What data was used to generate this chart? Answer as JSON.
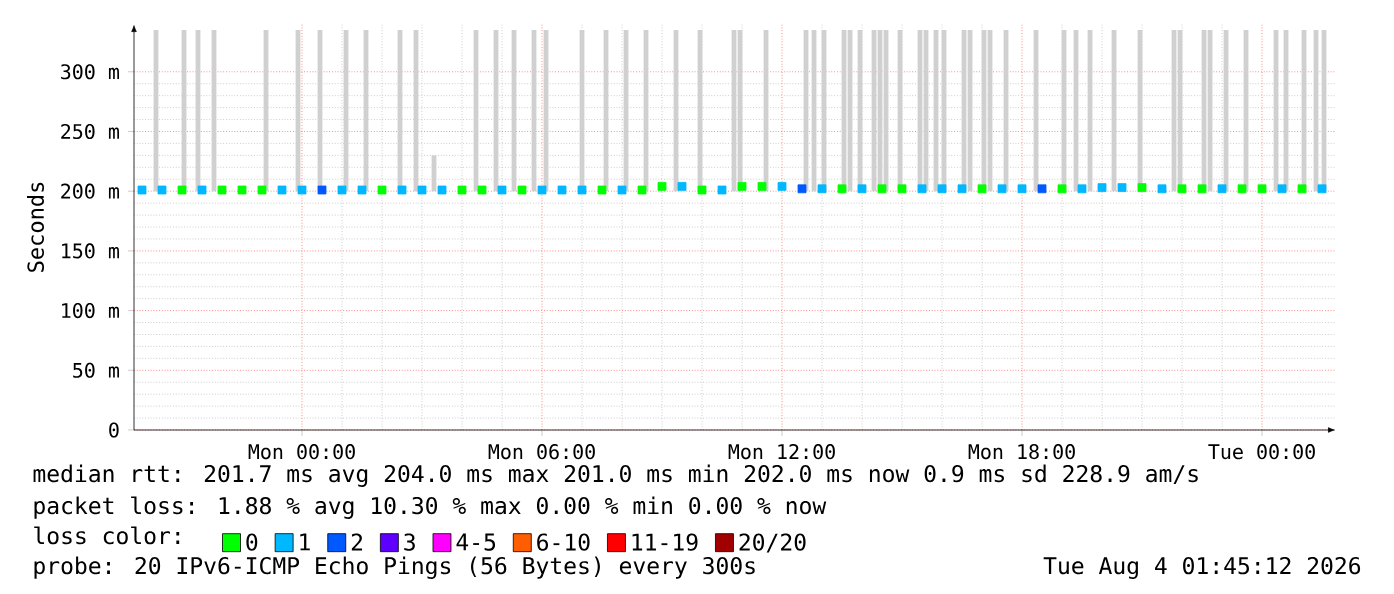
{
  "chart_data": {
    "type": "scatter",
    "ylabel": "Seconds",
    "legend_title": "loss color:",
    "legend": "bottom",
    "grid": true,
    "marker": "square",
    "xlim": [
      "2026-08-02T19:48",
      "2026-08-04T01:51"
    ],
    "ylim": [
      0,
      340
    ],
    "xticks": [
      {
        "value": "2026-08-03T00:00",
        "label": "Mon 00:00"
      },
      {
        "value": "2026-08-03T06:00",
        "label": "Mon 06:00"
      },
      {
        "value": "2026-08-03T12:00",
        "label": "Mon 12:00"
      },
      {
        "value": "2026-08-03T18:00",
        "label": "Mon 18:00"
      },
      {
        "value": "2026-08-04T00:00",
        "label": "Tue 00:00"
      }
    ],
    "yticks": [
      0,
      {
        "value": 50,
        "label": "50 m"
      },
      {
        "value": 100,
        "label": "100 m"
      },
      {
        "value": 150,
        "label": "150 m"
      },
      {
        "value": 200,
        "label": "200 m"
      },
      {
        "value": 250,
        "label": "250 m"
      },
      {
        "value": 300,
        "label": "300 m"
      }
    ],
    "series": [
      {
        "type": "bar",
        "color": "#d0d0d0",
        "x": [
          "2026-08-02T20:21",
          "2026-08-02T21:03",
          "2026-08-02T21:24",
          "2026-08-02T21:48",
          "2026-08-02T23:06",
          "2026-08-02T23:54",
          "2026-08-03T00:27",
          "2026-08-03T01:06",
          "2026-08-03T01:36",
          "2026-08-03T02:27",
          "2026-08-03T02:51",
          "2026-08-03T03:18",
          "2026-08-03T04:21",
          "2026-08-03T04:51",
          "2026-08-03T05:18",
          "2026-08-03T05:48",
          "2026-08-03T06:06",
          "2026-08-03T07:00",
          "2026-08-03T07:36",
          "2026-08-03T08:06",
          "2026-08-03T08:36",
          "2026-08-03T09:21",
          "2026-08-03T09:57",
          "2026-08-03T10:48",
          "2026-08-03T10:57",
          "2026-08-03T11:36",
          "2026-08-03T12:36",
          "2026-08-03T12:48",
          "2026-08-03T13:03",
          "2026-08-03T13:33",
          "2026-08-03T13:42",
          "2026-08-03T13:57",
          "2026-08-03T14:18",
          "2026-08-03T14:27",
          "2026-08-03T14:36",
          "2026-08-03T14:57",
          "2026-08-03T15:27",
          "2026-08-03T15:36",
          "2026-08-03T15:51",
          "2026-08-03T16:03",
          "2026-08-03T16:33",
          "2026-08-03T16:42",
          "2026-08-03T17:03",
          "2026-08-03T17:12",
          "2026-08-03T17:36",
          "2026-08-03T18:21",
          "2026-08-03T19:03",
          "2026-08-03T19:21",
          "2026-08-03T19:42",
          "2026-08-03T20:18",
          "2026-08-03T20:57",
          "2026-08-03T21:48",
          "2026-08-03T21:57",
          "2026-08-03T22:33",
          "2026-08-03T22:42",
          "2026-08-03T23:06",
          "2026-08-03T23:36",
          "2026-08-04T00:21",
          "2026-08-04T00:36",
          "2026-08-04T01:03",
          "2026-08-04T01:21",
          "2026-08-04T01:33"
        ],
        "base": [
          200,
          200,
          200,
          200,
          200,
          200,
          200,
          200,
          200,
          200,
          200,
          200,
          200,
          200,
          200,
          200,
          200,
          200,
          200,
          200,
          200,
          200,
          200,
          200,
          200,
          200,
          200,
          200,
          200,
          200,
          200,
          200,
          200,
          200,
          200,
          200,
          200,
          200,
          200,
          200,
          200,
          200,
          200,
          200,
          200,
          200,
          200,
          200,
          200,
          200,
          200,
          200,
          200,
          200,
          200,
          200,
          200,
          200,
          200,
          200,
          200,
          200
        ],
        "values": [
          135,
          135,
          135,
          135,
          135,
          135,
          135,
          135,
          135,
          135,
          135,
          30,
          135,
          135,
          135,
          135,
          135,
          135,
          135,
          135,
          135,
          135,
          135,
          135,
          135,
          135,
          135,
          135,
          135,
          135,
          135,
          135,
          135,
          135,
          135,
          135,
          135,
          135,
          135,
          135,
          135,
          135,
          135,
          135,
          135,
          135,
          135,
          135,
          135,
          135,
          135,
          135,
          135,
          135,
          135,
          135,
          135,
          135,
          135,
          135,
          135,
          135
        ]
      },
      {
        "name": "0",
        "color": "#00ff00",
        "x": [
          "2026-08-02T21:00",
          "2026-08-02T22:00",
          "2026-08-02T22:30",
          "2026-08-02T23:00",
          "2026-08-03T02:00",
          "2026-08-03T04:00",
          "2026-08-03T04:30",
          "2026-08-03T05:30",
          "2026-08-03T07:30",
          "2026-08-03T08:30",
          "2026-08-03T09:00",
          "2026-08-03T10:00",
          "2026-08-03T11:00",
          "2026-08-03T11:30",
          "2026-08-03T13:30",
          "2026-08-03T14:30",
          "2026-08-03T15:00",
          "2026-08-03T17:00",
          "2026-08-03T19:00",
          "2026-08-03T21:00",
          "2026-08-03T22:00",
          "2026-08-03T22:30",
          "2026-08-03T23:30",
          "2026-08-04T00:00",
          "2026-08-04T01:00"
        ],
        "values": [
          201,
          201,
          201,
          201,
          201,
          201,
          201,
          201,
          201,
          201,
          204,
          201,
          204,
          204,
          202,
          202,
          202,
          202,
          202,
          203,
          202,
          202,
          202,
          202,
          202
        ]
      },
      {
        "name": "1",
        "color": "#00b8ff",
        "x": [
          "2026-08-02T20:00",
          "2026-08-02T20:30",
          "2026-08-02T21:30",
          "2026-08-02T23:30",
          "2026-08-03T00:00",
          "2026-08-03T01:00",
          "2026-08-03T01:30",
          "2026-08-03T02:30",
          "2026-08-03T03:00",
          "2026-08-03T03:30",
          "2026-08-03T05:00",
          "2026-08-03T06:00",
          "2026-08-03T06:30",
          "2026-08-03T07:00",
          "2026-08-03T08:00",
          "2026-08-03T09:30",
          "2026-08-03T10:30",
          "2026-08-03T12:00",
          "2026-08-03T13:00",
          "2026-08-03T14:00",
          "2026-08-03T15:30",
          "2026-08-03T16:00",
          "2026-08-03T16:30",
          "2026-08-03T17:30",
          "2026-08-03T18:00",
          "2026-08-03T19:30",
          "2026-08-03T20:00",
          "2026-08-03T20:30",
          "2026-08-03T21:30",
          "2026-08-03T23:00",
          "2026-08-04T00:30",
          "2026-08-04T01:30"
        ],
        "values": [
          201,
          201,
          201,
          201,
          201,
          201,
          201,
          201,
          201,
          201,
          201,
          201,
          201,
          201,
          201,
          204,
          201,
          204,
          202,
          202,
          202,
          202,
          202,
          202,
          202,
          202,
          203,
          203,
          202,
          202,
          202,
          202
        ]
      },
      {
        "name": "2",
        "color": "#0059ff",
        "x": [
          "2026-08-03T00:30",
          "2026-08-03T12:30",
          "2026-08-03T18:30"
        ],
        "values": [
          201,
          202,
          202
        ]
      },
      {
        "name": "3",
        "color": "#5e00ff"
      },
      {
        "name": "4-5",
        "color": "#ff00ff"
      },
      {
        "name": "6-10",
        "color": "#ff5e00"
      },
      {
        "name": "11-19",
        "color": "#ff0000"
      },
      {
        "name": "20/20",
        "color": "#a10000"
      }
    ],
    "annotations": [
      "median rtt:  201.7 ms avg  204.0 ms max  201.0 ms min  202.0 ms now  0.9 ms sd  228.9   am/s",
      "packet loss: 1.88 % avg  10.30 % max  0.00 % min  0.00 % now",
      "probe:       20 IPv6-ICMP Echo Pings (56 Bytes) every 300s",
      "Tue Aug  4 01:45:12 2026"
    ]
  }
}
